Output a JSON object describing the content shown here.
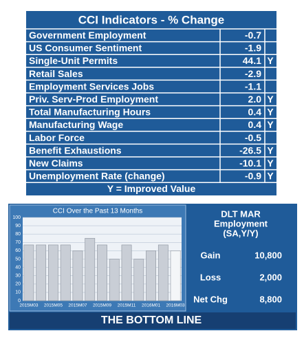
{
  "table": {
    "title": "CCI Indicators - % Change",
    "rows": [
      [
        "Government Employment",
        "-0.7",
        null
      ],
      [
        "US Consumer Sentiment",
        "-1.9",
        null
      ],
      [
        "Single-Unit Permits",
        "44.1",
        "Y"
      ],
      [
        "Retail Sales",
        "-2.9",
        null
      ],
      [
        "Employment Services Jobs",
        "-1.1",
        null
      ],
      [
        "Priv. Serv-Prod Employment",
        "2.0",
        "Y"
      ],
      [
        "Total Manufacturing Hours",
        "0.4",
        "Y"
      ],
      [
        "Manufacturing Wage",
        "0.4",
        "Y"
      ],
      [
        "Labor Force",
        "-0.5",
        null
      ],
      [
        "Benefit Exhaustions",
        "-26.5",
        "Y"
      ],
      [
        "New Claims",
        "-10.1",
        "Y"
      ],
      [
        "Unemployment Rate (change)",
        "-0.9",
        "Y"
      ]
    ],
    "footer": "Y = Improved Value"
  },
  "chart_data": {
    "type": "bar",
    "title": "CCI Over the Past 13 Months",
    "categories": [
      "2015M03",
      null,
      "2015M05",
      null,
      "2015M07",
      null,
      "2015M09",
      null,
      "2015M11",
      null,
      "2016M01",
      null,
      "2016M03"
    ],
    "values": [
      67,
      67,
      67,
      67,
      60,
      75,
      67,
      50,
      67,
      50,
      60,
      67,
      60
    ],
    "colors": [
      "#c9ced6",
      "#c9ced6",
      "#c9ced6",
      "#c9ced6",
      "#c9ced6",
      "#c9ced6",
      "#c9ced6",
      "#c9ced6",
      "#c9ced6",
      "#c9ced6",
      "#c9ced6",
      "#c9ced6",
      "#f4f6f8"
    ],
    "ylim": [
      0,
      100
    ],
    "yticks": [
      0,
      10,
      20,
      30,
      40,
      50,
      60,
      70,
      80,
      90,
      100
    ],
    "grid": true
  },
  "panel": {
    "title": [
      "DLT MAR",
      "Employment",
      "(SA,Y/Y)"
    ],
    "rows": [
      [
        "Gain",
        "10,800"
      ],
      [
        "Loss",
        "2,000"
      ],
      [
        "Net Chg",
        "8,800"
      ]
    ]
  },
  "footer": "THE BOTTOM LINE"
}
